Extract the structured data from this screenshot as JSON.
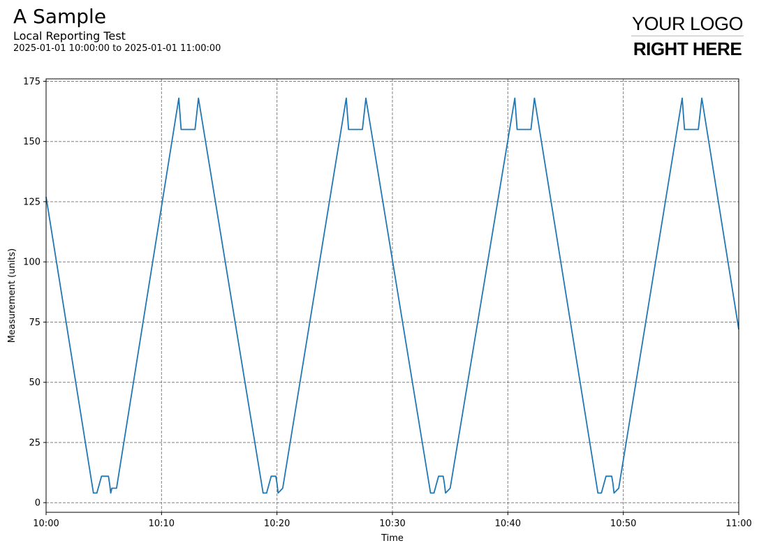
{
  "header": {
    "title": "A Sample",
    "subtitle": "Local Reporting Test",
    "date_range": "2025-01-01 10:00:00 to 2025-01-01 11:00:00"
  },
  "logo": {
    "line1": "YOUR LOGO",
    "line2": "RIGHT HERE"
  },
  "colors": {
    "series": "#1f77b4",
    "grid": "#808080"
  },
  "chart_data": {
    "type": "line",
    "title": "",
    "xlabel": "Time",
    "ylabel": "Measurement (units)",
    "x_ticks": [
      "10:00",
      "10:10",
      "10:20",
      "10:30",
      "10:40",
      "10:50",
      "11:00"
    ],
    "y_ticks": [
      0,
      25,
      50,
      75,
      100,
      125,
      150,
      175
    ],
    "xlim": [
      "10:00",
      "11:00"
    ],
    "ylim": [
      -4,
      176
    ],
    "grid": true,
    "series": [
      {
        "x": [
          "10:00:00",
          "10:04:06",
          "10:04:24",
          "10:04:48",
          "10:05:24",
          "10:05:30",
          "10:05:36",
          "10:05:42",
          "10:06:06",
          "10:11:30",
          "10:11:42",
          "10:12:06",
          "10:12:54",
          "10:13:12",
          "10:18:48",
          "10:19:06",
          "10:19:30",
          "10:19:54",
          "10:20:00",
          "10:20:06",
          "10:20:30",
          "10:26:00",
          "10:26:12",
          "10:26:36",
          "10:27:24",
          "10:27:42",
          "10:33:18",
          "10:33:36",
          "10:34:00",
          "10:34:24",
          "10:34:30",
          "10:34:36",
          "10:35:00",
          "10:40:36",
          "10:40:48",
          "10:41:12",
          "10:42:00",
          "10:42:18",
          "10:47:48",
          "10:48:06",
          "10:48:30",
          "10:49:00",
          "10:49:06",
          "10:49:12",
          "10:49:36",
          "10:55:06",
          "10:55:18",
          "10:55:42",
          "10:56:30",
          "10:56:48",
          "11:00:00"
        ],
        "y": [
          127,
          4,
          4,
          11,
          11,
          8,
          4,
          6,
          6,
          168,
          155,
          155,
          155,
          168,
          4,
          4,
          11,
          11,
          8,
          4,
          6,
          168,
          155,
          155,
          155,
          168,
          4,
          4,
          11,
          11,
          8,
          4,
          6,
          168,
          155,
          155,
          155,
          168,
          4,
          4,
          11,
          11,
          8,
          4,
          6,
          168,
          155,
          155,
          155,
          168,
          72
        ]
      }
    ]
  }
}
